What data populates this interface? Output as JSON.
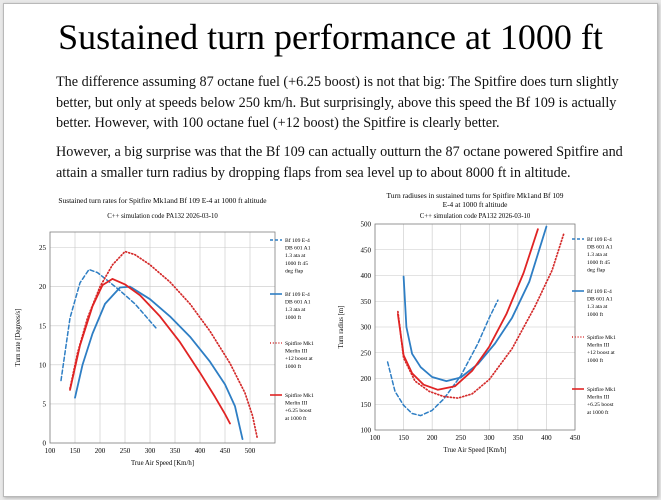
{
  "title": "Sustained turn performance at 1000 ft",
  "paragraphs": [
    "The difference assuming 87 octane fuel (+6.25 boost) is not that big: The Spitfire does turn slightly better, but only at speeds below 250 km/h. But surprisingly, above this speed the Bf 109 is actually better. However, with 100 octane fuel (+12 boost) the Spitfire is clearly better.",
    "However, a big surprise was that the Bf 109 can actually outturn the 87 octane powered Spitfire and attain a smaller turn radius by dropping flaps from sea level up to about 8000 ft in altitude."
  ],
  "colors": {
    "bf109": "#2e7ec4",
    "spit12": "#d42a2a",
    "spit625": "#e02424",
    "grid": "#c8c8c8"
  },
  "chart_data": [
    {
      "type": "line",
      "title": "Sustained turn rates for Spitfire Mk1and Bf 109 E-4 at 1000 ft altitude",
      "subtitle": "C++ simulation code PA132  2026-03-10",
      "xlabel": "True Air Speed [Km/h]",
      "ylabel": "Turn rate [Degrees/s]",
      "xlim": [
        100,
        550
      ],
      "ylim": [
        0,
        27
      ],
      "xticks": [
        100,
        150,
        200,
        250,
        300,
        350,
        400,
        450,
        500
      ],
      "yticks": [
        0,
        5,
        10,
        15,
        20,
        25
      ],
      "series": [
        {
          "name": "Bf 109 E-4 DB 601 A1 1.3 ata at 1000 ft 45 deg flap",
          "legend_lines": [
            "Bf 109 E-4",
            "DB 601 A1",
            "1.3 ata at",
            "1000 ft 45",
            "deg flap"
          ],
          "color": "#2e7ec4",
          "dash": "dashed",
          "x": [
            122,
            140,
            160,
            178,
            195,
            215,
            240,
            270,
            300,
            315
          ],
          "y": [
            8.0,
            16.0,
            20.5,
            22.2,
            21.8,
            20.8,
            19.5,
            17.8,
            15.6,
            14.5
          ]
        },
        {
          "name": "Bf 109 E-4 DB 601 A1 1.3 ata at 1000 ft",
          "legend_lines": [
            "Bf 109 E-4",
            "DB 601 A1",
            "1.3 ata at",
            "1000 ft"
          ],
          "color": "#2e7ec4",
          "dash": "solid",
          "x": [
            150,
            165,
            185,
            210,
            240,
            260,
            300,
            340,
            380,
            420,
            450,
            470,
            485
          ],
          "y": [
            5.8,
            10.0,
            14.0,
            17.8,
            19.9,
            20.0,
            18.4,
            16.2,
            13.6,
            10.4,
            7.5,
            4.7,
            0.5
          ]
        },
        {
          "name": "Spitfire Mk1 Merlin III +12 boost at 1000 ft",
          "legend_lines": [
            "Spitfire Mk1",
            "Merlin III",
            "+12 boost at",
            "1000 ft"
          ],
          "color": "#d42a2a",
          "dash": "dotted",
          "x": [
            140,
            155,
            175,
            200,
            225,
            250,
            270,
            300,
            340,
            380,
            420,
            460,
            490,
            505,
            515
          ],
          "y": [
            7.0,
            11.5,
            16.0,
            20.0,
            22.8,
            24.5,
            24.1,
            22.8,
            20.6,
            17.8,
            14.3,
            10.2,
            6.4,
            3.5,
            0.5
          ]
        },
        {
          "name": "Spitfire Mk1 Merlin III +6.25 boost at 1000 ft",
          "legend_lines": [
            "Spitfire Mk1",
            "Merlin III",
            "+6.25 boost",
            "at 1000 ft"
          ],
          "color": "#e02424",
          "dash": "solid",
          "x": [
            140,
            160,
            185,
            205,
            225,
            250,
            280,
            320,
            360,
            400,
            430,
            450,
            460
          ],
          "y": [
            6.8,
            12.5,
            17.5,
            20.2,
            21.0,
            20.3,
            18.9,
            16.2,
            12.9,
            9.0,
            5.9,
            3.7,
            2.5
          ]
        }
      ]
    },
    {
      "type": "line",
      "title": "Turn radiuses in sustained turns for Spitfire Mk1and Bf 109 E-4 at 1000 ft altitude",
      "subtitle": "C++ simulation code PA132  2026-03-10",
      "xlabel": "True Air Speed [Km/h]",
      "ylabel": "Turn radius  [m]",
      "xlim": [
        100,
        450
      ],
      "ylim": [
        100,
        500
      ],
      "xticks": [
        100,
        150,
        200,
        250,
        300,
        350,
        400,
        450
      ],
      "yticks": [
        100,
        150,
        200,
        250,
        300,
        350,
        400,
        450,
        500
      ],
      "series": [
        {
          "name": "Bf 109 E-4 DB 601 A1 1.3 ata at 1000 ft 45 deg flap",
          "legend_lines": [
            "Bf 109 E-4",
            "DB 601 A1",
            "1.3 ata at",
            "1000 ft 45",
            "deg flap"
          ],
          "color": "#2e7ec4",
          "dash": "dashed",
          "x": [
            122,
            135,
            150,
            165,
            180,
            200,
            220,
            250,
            280,
            300,
            315
          ],
          "y": [
            232,
            175,
            148,
            132,
            128,
            138,
            160,
            205,
            268,
            318,
            352
          ]
        },
        {
          "name": "Bf 109 E-4 DB 601 A1 1.3 ata at 1000 ft",
          "legend_lines": [
            "Bf 109 E-4",
            "DB 601 A1",
            "1.3 ata at",
            "1000 ft"
          ],
          "color": "#2e7ec4",
          "dash": "solid",
          "x": [
            150,
            155,
            165,
            180,
            200,
            225,
            250,
            280,
            310,
            340,
            370,
            400
          ],
          "y": [
            398,
            300,
            248,
            222,
            203,
            195,
            202,
            228,
            268,
            318,
            388,
            495
          ]
        },
        {
          "name": "Spitfire Mk1 Merlin III +12 boost at 1000 ft",
          "legend_lines": [
            "Spitfire Mk1",
            "Merlin III",
            "+12 boost at",
            "1000 ft"
          ],
          "color": "#d42a2a",
          "dash": "dotted",
          "x": [
            140,
            150,
            170,
            195,
            220,
            245,
            270,
            300,
            340,
            380,
            410,
            430
          ],
          "y": [
            330,
            240,
            195,
            175,
            165,
            162,
            170,
            198,
            258,
            340,
            410,
            480
          ]
        },
        {
          "name": "Spitfire Mk1 Merlin III +6.25 boost at 1000 ft",
          "legend_lines": [
            "Spitfire Mk1",
            "Merlin III",
            "+6.25 boost",
            "at 1000 ft"
          ],
          "color": "#e02424",
          "dash": "solid",
          "x": [
            140,
            150,
            165,
            185,
            210,
            240,
            270,
            300,
            330,
            360,
            385
          ],
          "y": [
            325,
            245,
            210,
            188,
            178,
            185,
            215,
            262,
            325,
            405,
            490
          ]
        }
      ]
    }
  ]
}
